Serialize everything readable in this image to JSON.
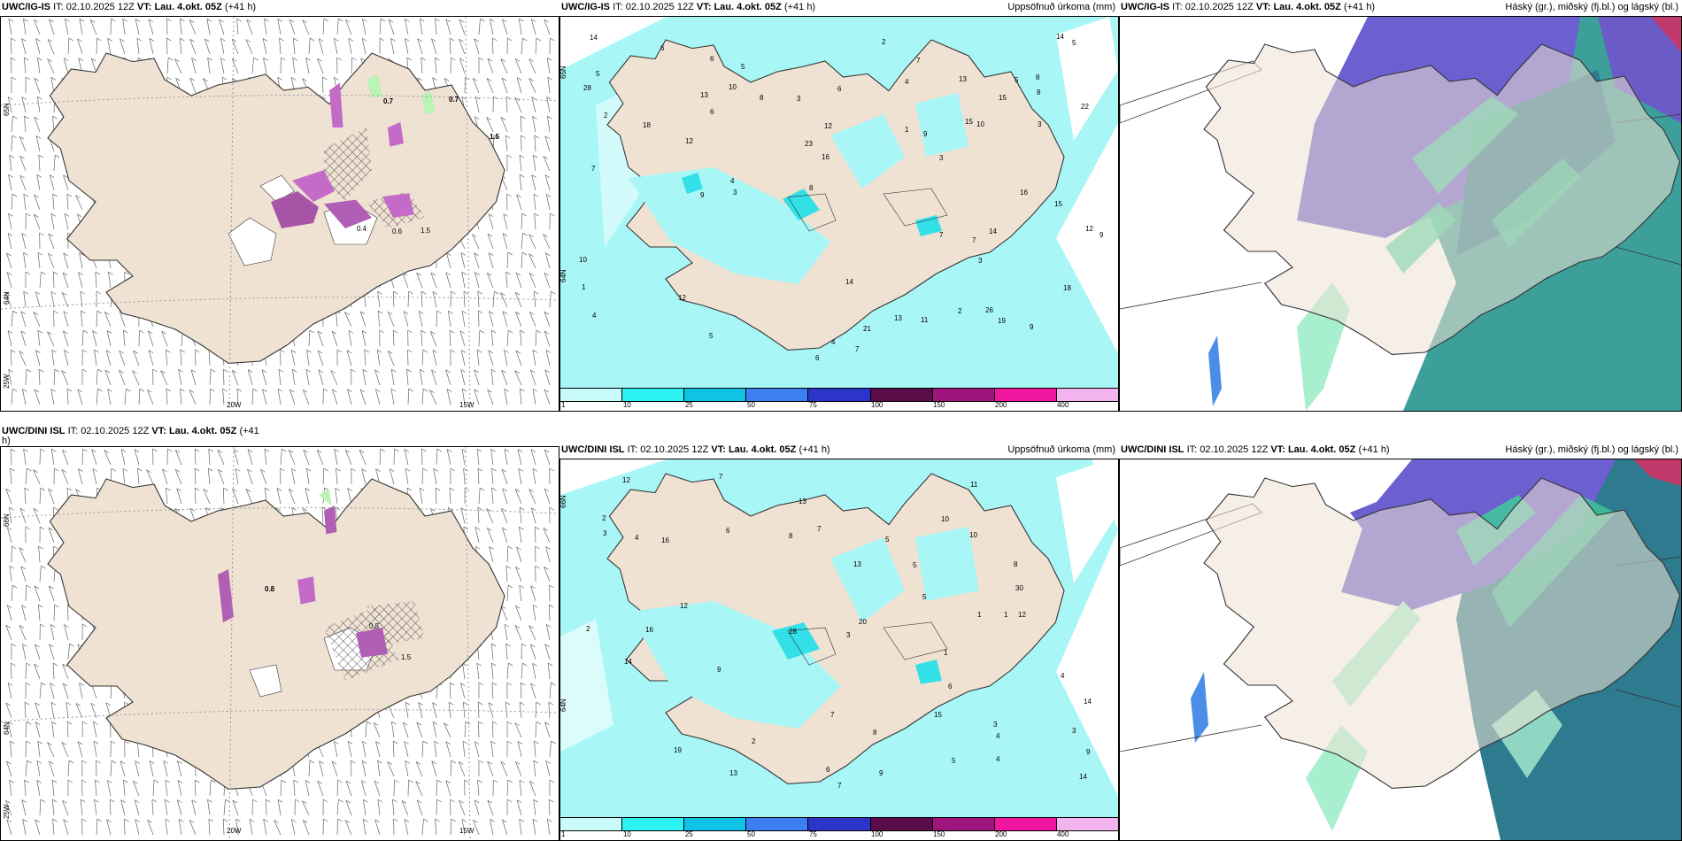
{
  "colors": {
    "land": "#efe2d3",
    "coast": "#3a3a3a",
    "precip_light": "#a8f6f6",
    "precip_mid": "#34e0e8",
    "snow_magenta": "#c46bc8",
    "rain_green": "#b9f3b5",
    "cloud_high": "#5f59cc",
    "cloud_mid": "#2f9b8e",
    "cloud_low": "#3fd19a"
  },
  "row1": {
    "panel1": {
      "model": "UWC/IG-IS",
      "it_label": "IT:",
      "it_value": "02.10.2025 12Z",
      "vt_label": "VT:",
      "vt_value": "Lau. 4.okt. 05Z",
      "lead": "(+41 h)",
      "lat1": "65N",
      "lat2": "64N",
      "lon_left": "25W",
      "lon_mid": "20W",
      "lon_right": "15W",
      "values": [
        "0.7",
        "0.7",
        "1.5",
        "0.4",
        "0.6",
        "1.5"
      ]
    },
    "panel2": {
      "model": "UWC/IG-IS",
      "it_label": "IT:",
      "it_value": "02.10.2025 12Z",
      "vt_label": "VT:",
      "vt_value": "Lau. 4.okt. 05Z",
      "lead": "(+41 h)",
      "subtitle": "Uppsöfnuð úrkoma (mm)",
      "lat1": "65N",
      "lat2": "64N",
      "numbers": [
        "2",
        "6",
        "3",
        "4",
        "5",
        "6",
        "7",
        "3",
        "8",
        "9",
        "12",
        "10",
        "15",
        "12",
        "7",
        "5",
        "4",
        "3",
        "9",
        "13",
        "19",
        "15",
        "16",
        "14",
        "13",
        "12",
        "8",
        "7",
        "6",
        "9",
        "10",
        "11",
        "14",
        "18",
        "5",
        "6",
        "8",
        "4",
        "2",
        "1",
        "10",
        "13",
        "23",
        "26",
        "21",
        "22",
        "28",
        "16",
        "18",
        "14",
        "12",
        "9",
        "8",
        "7",
        "6",
        "5",
        "4",
        "3",
        "2",
        "1",
        "15",
        "14",
        "3",
        "5",
        "7"
      ]
    },
    "panel3": {
      "model": "UWC/IG-IS",
      "it_label": "IT:",
      "it_value": "02.10.2025 12Z",
      "vt_label": "VT:",
      "vt_value": "Lau. 4.okt. 05Z",
      "lead": "(+41 h)",
      "subtitle": "Háský (gr.), miðský (fj.bl.) og lágský (bl.)"
    }
  },
  "row2": {
    "panel1": {
      "model": "UWC/DINI ISL",
      "it_label": "IT:",
      "it_value": "02.10.2025 12Z",
      "vt_label": "VT:",
      "vt_value": "Lau. 4.okt. 05Z",
      "lead": "(+41",
      "lead2": "h)",
      "lat1": "66N",
      "lat2": "64N",
      "lon_left": "25W",
      "lon_mid": "20W",
      "lon_right": "15W",
      "values": [
        "0.8",
        "0.5",
        "1.5"
      ]
    },
    "panel2": {
      "model": "UWC/DINI ISL",
      "it_label": "IT:",
      "it_value": "02.10.2025 12Z",
      "vt_label": "VT:",
      "vt_value": "Lau. 4.okt. 05Z",
      "lead": "(+41 h)",
      "subtitle": "Uppsöfnuð úrkoma (mm)",
      "lat1": "66N",
      "lat2": "64N",
      "numbers": [
        "13",
        "4",
        "2",
        "8",
        "6",
        "7",
        "9",
        "10",
        "12",
        "14",
        "3",
        "5",
        "1",
        "4",
        "9",
        "10",
        "14",
        "15",
        "8",
        "6",
        "3",
        "7",
        "5",
        "28",
        "30",
        "16",
        "12",
        "14",
        "20",
        "13",
        "19",
        "16",
        "11",
        "12",
        "9",
        "8",
        "7",
        "6",
        "5",
        "4",
        "3",
        "2",
        "1",
        "13",
        "5",
        "7",
        "3",
        "4",
        "2",
        "1"
      ]
    },
    "panel3": {
      "model": "UWC/DINI ISL",
      "it_label": "IT:",
      "it_value": "02.10.2025 12Z",
      "vt_label": "VT:",
      "vt_value": "Lau. 4.okt. 05Z",
      "lead": "(+41 h)",
      "subtitle": "Háský (gr.), miðský (fj.bl.) og lágský (bl.)"
    }
  },
  "colorbar": {
    "labels": [
      "1",
      "10",
      "25",
      "50",
      "75",
      "100",
      "150",
      "200",
      "400"
    ],
    "colors": [
      "#c9fbfb",
      "#2cf2f2",
      "#10c3e6",
      "#3b7ff3",
      "#2b35c9",
      "#5a0c49",
      "#a0157d",
      "#f0169f",
      "#f2b3ee"
    ]
  }
}
